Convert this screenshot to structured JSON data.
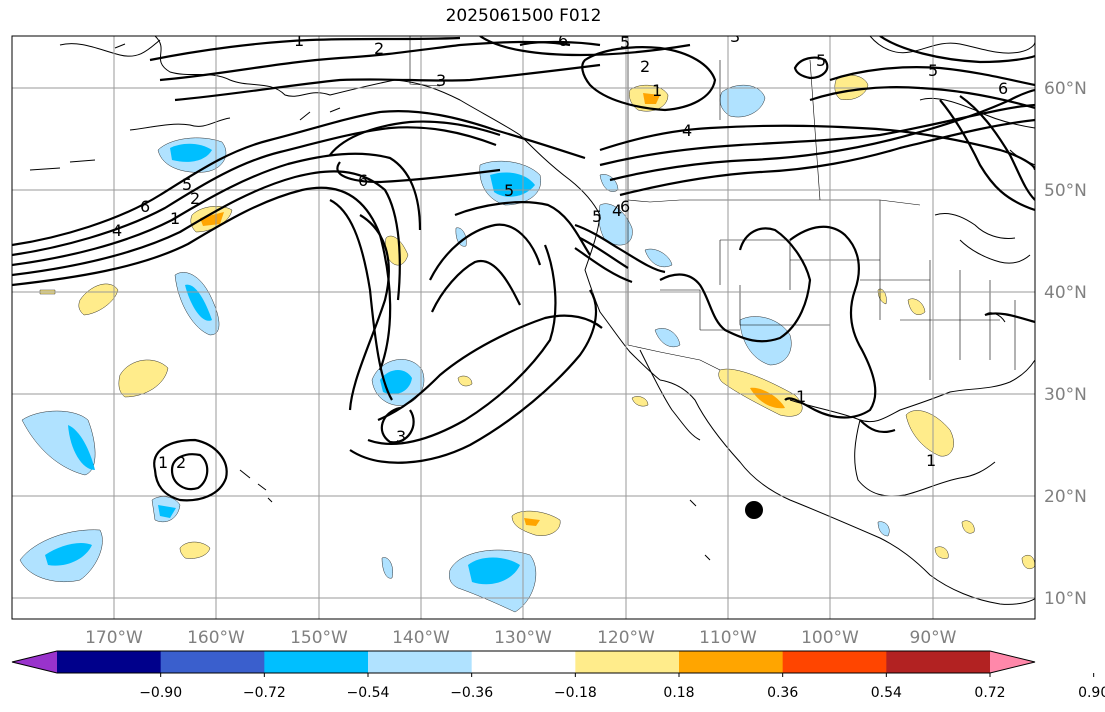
{
  "title": "2025061500 F012",
  "latitude_labels": [
    "60°N",
    "50°N",
    "40°N",
    "30°N",
    "20°N",
    "10°N"
  ],
  "longitude_labels": [
    "170°W",
    "160°W",
    "150°W",
    "140°W",
    "130°W",
    "120°W",
    "110°W",
    "100°W",
    "90°W"
  ],
  "colorbar": {
    "ticks": [
      "−0.90",
      "−0.72",
      "−0.54",
      "−0.36",
      "−0.18",
      "0.18",
      "0.36",
      "0.54",
      "0.72",
      "0.90"
    ],
    "colors": [
      "#9933cc",
      "#00008b",
      "#3a5fcd",
      "#00bfff",
      "#b0e2ff",
      "#ffffff",
      "#ffec8b",
      "#ffa500",
      "#ff4500",
      "#b22222",
      "#ff88aa"
    ]
  },
  "contour_labels": [
    "1",
    "2",
    "3",
    "6",
    "5",
    "4",
    "5",
    "6",
    "5",
    "2",
    "1",
    "4",
    "6",
    "5",
    "1",
    "2",
    "3",
    "6",
    "4",
    "3",
    "5",
    "5",
    "6",
    "1",
    "2",
    "1",
    "1"
  ],
  "marker": "black-dot"
}
